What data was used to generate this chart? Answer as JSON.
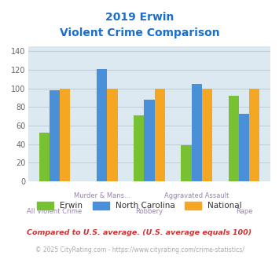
{
  "title_line1": "2019 Erwin",
  "title_line2": "Violent Crime Comparison",
  "categories": [
    "All Violent Crime",
    "Murder & Mans...",
    "Robbery",
    "Aggravated Assault",
    "Rape"
  ],
  "series": {
    "Erwin": [
      52,
      0,
      71,
      39,
      92
    ],
    "North Carolina": [
      98,
      121,
      88,
      105,
      73
    ],
    "National": [
      100,
      100,
      100,
      100,
      100
    ]
  },
  "colors": {
    "Erwin": "#77c132",
    "North Carolina": "#4a90d9",
    "National": "#f5a623"
  },
  "ylim": [
    0,
    145
  ],
  "yticks": [
    0,
    20,
    40,
    60,
    80,
    100,
    120,
    140
  ],
  "bar_width": 0.22,
  "background_color": "#dce9f0",
  "title_color": "#1a6fcc",
  "xlabel_color_upper": "#9b7fb6",
  "xlabel_color_lower": "#9b7fb6",
  "legend_label_color": "#333333",
  "footnote1": "Compared to U.S. average. (U.S. average equals 100)",
  "footnote2": "© 2025 CityRating.com - https://www.cityrating.com/crime-statistics/",
  "footnote1_color": "#cc3333",
  "footnote2_color": "#aaaaaa",
  "grid_color": "#c0d0da"
}
